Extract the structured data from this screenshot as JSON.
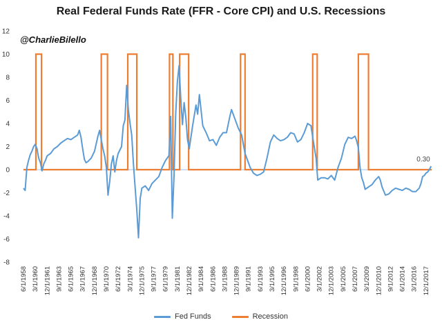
{
  "chart_data": {
    "type": "line",
    "title": "Real Federal Funds Rate (FFR - Core CPI) and U.S. Recessions",
    "annotation": "@CharlieBilello",
    "colors": {
      "fed_funds": "#5b9bd5",
      "recession": "#ed7d31",
      "zero_line": "#9dc3e6"
    },
    "ylim": [
      -8,
      12
    ],
    "yticks": [
      -8,
      -6,
      -4,
      -2,
      0,
      2,
      4,
      6,
      8,
      10,
      12
    ],
    "xlim": [
      "1958-06-01",
      "2018-10-01"
    ],
    "xticks": [
      "6/1/1958",
      "3/1/1960",
      "12/1/1961",
      "9/1/1963",
      "6/1/1965",
      "3/1/1967",
      "12/1/1968",
      "9/1/1970",
      "6/1/1972",
      "3/1/1974",
      "12/1/1975",
      "9/1/1977",
      "6/1/1979",
      "3/1/1981",
      "12/1/1982",
      "9/1/1984",
      "6/1/1986",
      "3/1/1988",
      "12/1/1989",
      "9/1/1991",
      "6/1/1993",
      "3/1/1995",
      "12/1/1996",
      "9/1/1998",
      "6/1/2000",
      "3/1/2002",
      "12/1/2003",
      "9/1/2005",
      "6/1/2007",
      "3/1/2009",
      "12/1/2010",
      "9/1/2012",
      "6/1/2014",
      "3/1/2016",
      "12/1/2017"
    ],
    "last_value_label": "0.30",
    "legend": {
      "position": "bottom",
      "items": [
        "Fed Funds",
        "Recession"
      ]
    },
    "series": [
      {
        "name": "Fed Funds",
        "points": [
          [
            "1958-06-01",
            -1.6
          ],
          [
            "1958-09-01",
            -1.8
          ],
          [
            "1958-12-01",
            0.2
          ],
          [
            "1959-03-01",
            0.8
          ],
          [
            "1959-06-01",
            1.3
          ],
          [
            "1959-09-01",
            1.6
          ],
          [
            "1959-12-01",
            2.0
          ],
          [
            "1960-03-01",
            2.2
          ],
          [
            "1960-06-01",
            1.8
          ],
          [
            "1960-09-01",
            1.0
          ],
          [
            "1960-12-01",
            0.6
          ],
          [
            "1961-03-01",
            -0.1
          ],
          [
            "1961-06-01",
            0.5
          ],
          [
            "1961-09-01",
            0.8
          ],
          [
            "1961-12-01",
            1.2
          ],
          [
            "1962-06-01",
            1.4
          ],
          [
            "1962-12-01",
            1.8
          ],
          [
            "1963-06-01",
            2.0
          ],
          [
            "1963-12-01",
            2.3
          ],
          [
            "1964-06-01",
            2.5
          ],
          [
            "1964-12-01",
            2.7
          ],
          [
            "1965-06-01",
            2.6
          ],
          [
            "1965-12-01",
            2.8
          ],
          [
            "1966-06-01",
            3.0
          ],
          [
            "1966-09-01",
            3.4
          ],
          [
            "1966-12-01",
            2.8
          ],
          [
            "1967-03-01",
            1.8
          ],
          [
            "1967-06-01",
            0.9
          ],
          [
            "1967-09-01",
            0.6
          ],
          [
            "1967-12-01",
            0.7
          ],
          [
            "1968-06-01",
            1.0
          ],
          [
            "1968-12-01",
            1.6
          ],
          [
            "1969-06-01",
            2.9
          ],
          [
            "1969-09-01",
            3.4
          ],
          [
            "1969-12-01",
            2.6
          ],
          [
            "1970-03-01",
            1.8
          ],
          [
            "1970-06-01",
            1.2
          ],
          [
            "1970-09-01",
            0.2
          ],
          [
            "1970-12-01",
            -2.2
          ],
          [
            "1971-03-01",
            -1.0
          ],
          [
            "1971-06-01",
            0.5
          ],
          [
            "1971-09-01",
            1.2
          ],
          [
            "1971-12-01",
            -0.2
          ],
          [
            "1972-03-01",
            0.8
          ],
          [
            "1972-06-01",
            1.4
          ],
          [
            "1972-12-01",
            2.0
          ],
          [
            "1973-03-01",
            3.8
          ],
          [
            "1973-06-01",
            4.3
          ],
          [
            "1973-09-01",
            7.3
          ],
          [
            "1973-12-01",
            5.2
          ],
          [
            "1974-03-01",
            4.0
          ],
          [
            "1974-06-01",
            3.0
          ],
          [
            "1974-09-01",
            0.5
          ],
          [
            "1974-12-01",
            -1.5
          ],
          [
            "1975-03-01",
            -3.5
          ],
          [
            "1975-06-01",
            -5.9
          ],
          [
            "1975-09-01",
            -2.5
          ],
          [
            "1975-12-01",
            -1.6
          ],
          [
            "1976-06-01",
            -1.4
          ],
          [
            "1976-12-01",
            -1.8
          ],
          [
            "1977-06-01",
            -1.2
          ],
          [
            "1977-12-01",
            -0.9
          ],
          [
            "1978-06-01",
            -0.6
          ],
          [
            "1978-12-01",
            0.2
          ],
          [
            "1979-06-01",
            0.8
          ],
          [
            "1979-12-01",
            1.2
          ],
          [
            "1980-03-01",
            4.6
          ],
          [
            "1980-06-01",
            -4.2
          ],
          [
            "1980-09-01",
            -0.5
          ],
          [
            "1980-12-01",
            4.8
          ],
          [
            "1981-03-01",
            7.6
          ],
          [
            "1981-06-01",
            9.0
          ],
          [
            "1981-09-01",
            6.2
          ],
          [
            "1981-12-01",
            3.9
          ],
          [
            "1982-03-01",
            5.8
          ],
          [
            "1982-06-01",
            4.5
          ],
          [
            "1982-09-01",
            2.6
          ],
          [
            "1982-12-01",
            1.8
          ],
          [
            "1983-06-01",
            3.8
          ],
          [
            "1983-12-01",
            5.6
          ],
          [
            "1984-03-01",
            4.8
          ],
          [
            "1984-06-01",
            6.5
          ],
          [
            "1984-12-01",
            3.8
          ],
          [
            "1985-06-01",
            3.2
          ],
          [
            "1985-12-01",
            2.5
          ],
          [
            "1986-06-01",
            2.6
          ],
          [
            "1986-12-01",
            2.1
          ],
          [
            "1987-06-01",
            2.8
          ],
          [
            "1987-12-01",
            3.2
          ],
          [
            "1988-06-01",
            3.2
          ],
          [
            "1988-12-01",
            4.6
          ],
          [
            "1989-03-01",
            5.2
          ],
          [
            "1989-09-01",
            4.4
          ],
          [
            "1990-03-01",
            3.6
          ],
          [
            "1990-09-01",
            3.0
          ],
          [
            "1991-03-01",
            1.4
          ],
          [
            "1991-09-01",
            0.6
          ],
          [
            "1991-12-01",
            0.2
          ],
          [
            "1992-06-01",
            -0.3
          ],
          [
            "1992-12-01",
            -0.5
          ],
          [
            "1993-06-01",
            -0.4
          ],
          [
            "1993-12-01",
            -0.2
          ],
          [
            "1994-06-01",
            1.0
          ],
          [
            "1994-12-01",
            2.4
          ],
          [
            "1995-06-01",
            3.0
          ],
          [
            "1995-12-01",
            2.7
          ],
          [
            "1996-06-01",
            2.5
          ],
          [
            "1996-12-01",
            2.6
          ],
          [
            "1997-06-01",
            2.8
          ],
          [
            "1997-12-01",
            3.2
          ],
          [
            "1998-06-01",
            3.1
          ],
          [
            "1998-12-01",
            2.4
          ],
          [
            "1999-06-01",
            2.6
          ],
          [
            "1999-12-01",
            3.2
          ],
          [
            "2000-06-01",
            4.0
          ],
          [
            "2000-12-01",
            3.8
          ],
          [
            "2001-03-01",
            2.8
          ],
          [
            "2001-09-01",
            1.0
          ],
          [
            "2001-12-01",
            -0.9
          ],
          [
            "2002-06-01",
            -0.7
          ],
          [
            "2002-12-01",
            -0.7
          ],
          [
            "2003-06-01",
            -0.8
          ],
          [
            "2003-12-01",
            -0.5
          ],
          [
            "2004-06-01",
            -0.9
          ],
          [
            "2004-12-01",
            0.2
          ],
          [
            "2005-06-01",
            1.0
          ],
          [
            "2005-12-01",
            2.2
          ],
          [
            "2006-06-01",
            2.8
          ],
          [
            "2006-12-01",
            2.7
          ],
          [
            "2007-06-01",
            2.9
          ],
          [
            "2007-09-01",
            2.5
          ],
          [
            "2007-12-01",
            1.9
          ],
          [
            "2008-03-01",
            0.2
          ],
          [
            "2008-06-01",
            -0.7
          ],
          [
            "2008-09-01",
            -1.1
          ],
          [
            "2008-12-01",
            -1.7
          ],
          [
            "2009-06-01",
            -1.5
          ],
          [
            "2009-12-01",
            -1.3
          ],
          [
            "2010-06-01",
            -0.9
          ],
          [
            "2010-12-01",
            -0.6
          ],
          [
            "2011-03-01",
            -0.9
          ],
          [
            "2011-06-01",
            -1.5
          ],
          [
            "2011-12-01",
            -2.2
          ],
          [
            "2012-06-01",
            -2.1
          ],
          [
            "2012-12-01",
            -1.8
          ],
          [
            "2013-06-01",
            -1.6
          ],
          [
            "2013-12-01",
            -1.7
          ],
          [
            "2014-06-01",
            -1.8
          ],
          [
            "2014-12-01",
            -1.6
          ],
          [
            "2015-06-01",
            -1.7
          ],
          [
            "2015-12-01",
            -1.9
          ],
          [
            "2016-06-01",
            -1.9
          ],
          [
            "2016-12-01",
            -1.6
          ],
          [
            "2017-03-01",
            -1.2
          ],
          [
            "2017-06-01",
            -0.6
          ],
          [
            "2017-09-01",
            -0.5
          ],
          [
            "2017-12-01",
            -0.3
          ],
          [
            "2018-03-01",
            -0.2
          ],
          [
            "2018-06-01",
            0.0
          ],
          [
            "2018-09-01",
            0.3
          ]
        ]
      },
      {
        "name": "Recession",
        "recession_level": 10,
        "periods": [
          [
            "1960-04-01",
            "1961-02-01"
          ],
          [
            "1969-12-01",
            "1970-11-01"
          ],
          [
            "1973-11-01",
            "1975-03-01"
          ],
          [
            "1980-01-01",
            "1980-07-01"
          ],
          [
            "1981-07-01",
            "1982-11-01"
          ],
          [
            "1990-07-01",
            "1991-03-01"
          ],
          [
            "2001-03-01",
            "2001-11-01"
          ],
          [
            "2007-12-01",
            "2009-06-01"
          ]
        ]
      }
    ]
  }
}
